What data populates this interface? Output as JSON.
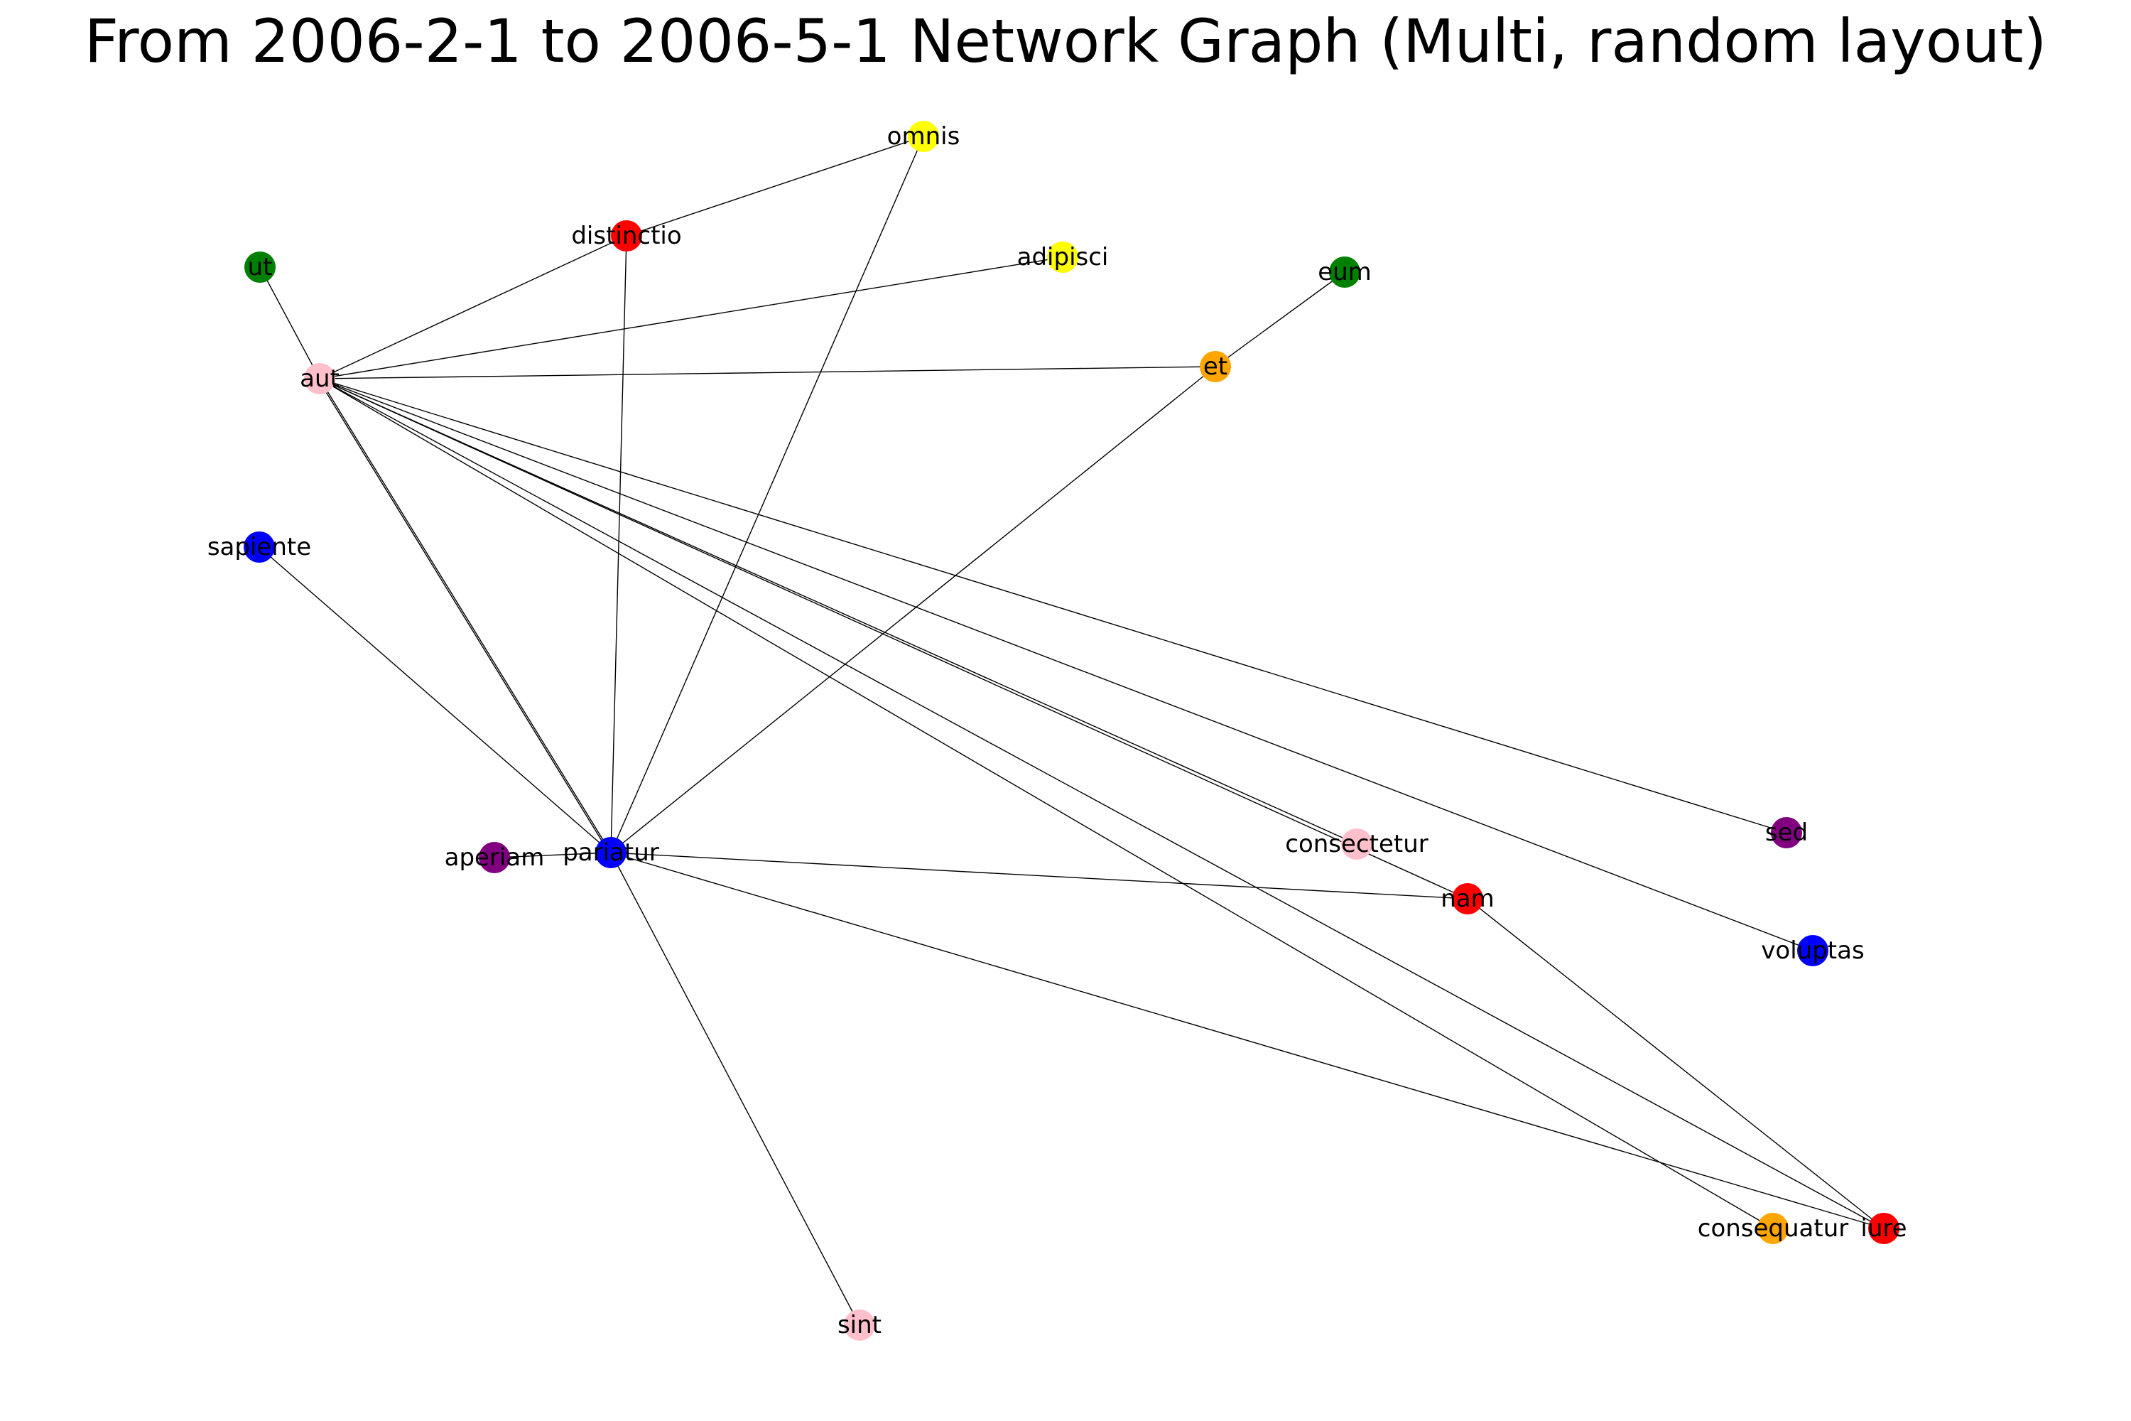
{
  "title": "From 2006-2-1 to 2006-5-1 Network Graph (Multi, random layout)",
  "colors": {
    "pink": "#ffc0cb",
    "red": "#ff0000",
    "green": "#008000",
    "yellow": "#ffff00",
    "orange": "#ffa500",
    "blue": "#0000ff",
    "purple": "#800080",
    "edge": "#000000"
  },
  "nodes": [
    {
      "id": "aut",
      "label": "aut",
      "color": "pink"
    },
    {
      "id": "ut",
      "label": "ut",
      "color": "green"
    },
    {
      "id": "distinctio",
      "label": "distinctio",
      "color": "red"
    },
    {
      "id": "omnis",
      "label": "omnis",
      "color": "yellow"
    },
    {
      "id": "adipisci",
      "label": "adipisci",
      "color": "yellow"
    },
    {
      "id": "eum",
      "label": "eum",
      "color": "green"
    },
    {
      "id": "et",
      "label": "et",
      "color": "orange"
    },
    {
      "id": "sapiente",
      "label": "sapiente",
      "color": "blue"
    },
    {
      "id": "aperiam",
      "label": "aperiam",
      "color": "purple"
    },
    {
      "id": "pariatur",
      "label": "pariatur",
      "color": "blue"
    },
    {
      "id": "consectetur",
      "label": "consectetur",
      "color": "pink"
    },
    {
      "id": "nam",
      "label": "nam",
      "color": "red"
    },
    {
      "id": "sed",
      "label": "sed",
      "color": "purple"
    },
    {
      "id": "voluptas",
      "label": "voluptas",
      "color": "blue"
    },
    {
      "id": "consequatur",
      "label": "consequatur",
      "color": "orange"
    },
    {
      "id": "iure",
      "label": "iure",
      "color": "red"
    },
    {
      "id": "sint",
      "label": "sint",
      "color": "pink"
    }
  ],
  "edges": [
    [
      "aut",
      "ut"
    ],
    [
      "aut",
      "distinctio"
    ],
    [
      "aut",
      "adipisci"
    ],
    [
      "aut",
      "et"
    ],
    [
      "aut",
      "pariatur"
    ],
    [
      "aut",
      "pariatur"
    ],
    [
      "aut",
      "consectetur"
    ],
    [
      "aut",
      "nam"
    ],
    [
      "aut",
      "sed"
    ],
    [
      "aut",
      "voluptas"
    ],
    [
      "aut",
      "consequatur"
    ],
    [
      "aut",
      "iure"
    ],
    [
      "distinctio",
      "omnis"
    ],
    [
      "distinctio",
      "pariatur"
    ],
    [
      "omnis",
      "pariatur"
    ],
    [
      "eum",
      "et"
    ],
    [
      "et",
      "pariatur"
    ],
    [
      "sapiente",
      "pariatur"
    ],
    [
      "aperiam",
      "pariatur"
    ],
    [
      "pariatur",
      "nam"
    ],
    [
      "pariatur",
      "iure"
    ],
    [
      "pariatur",
      "sint"
    ],
    [
      "nam",
      "iure"
    ]
  ]
}
